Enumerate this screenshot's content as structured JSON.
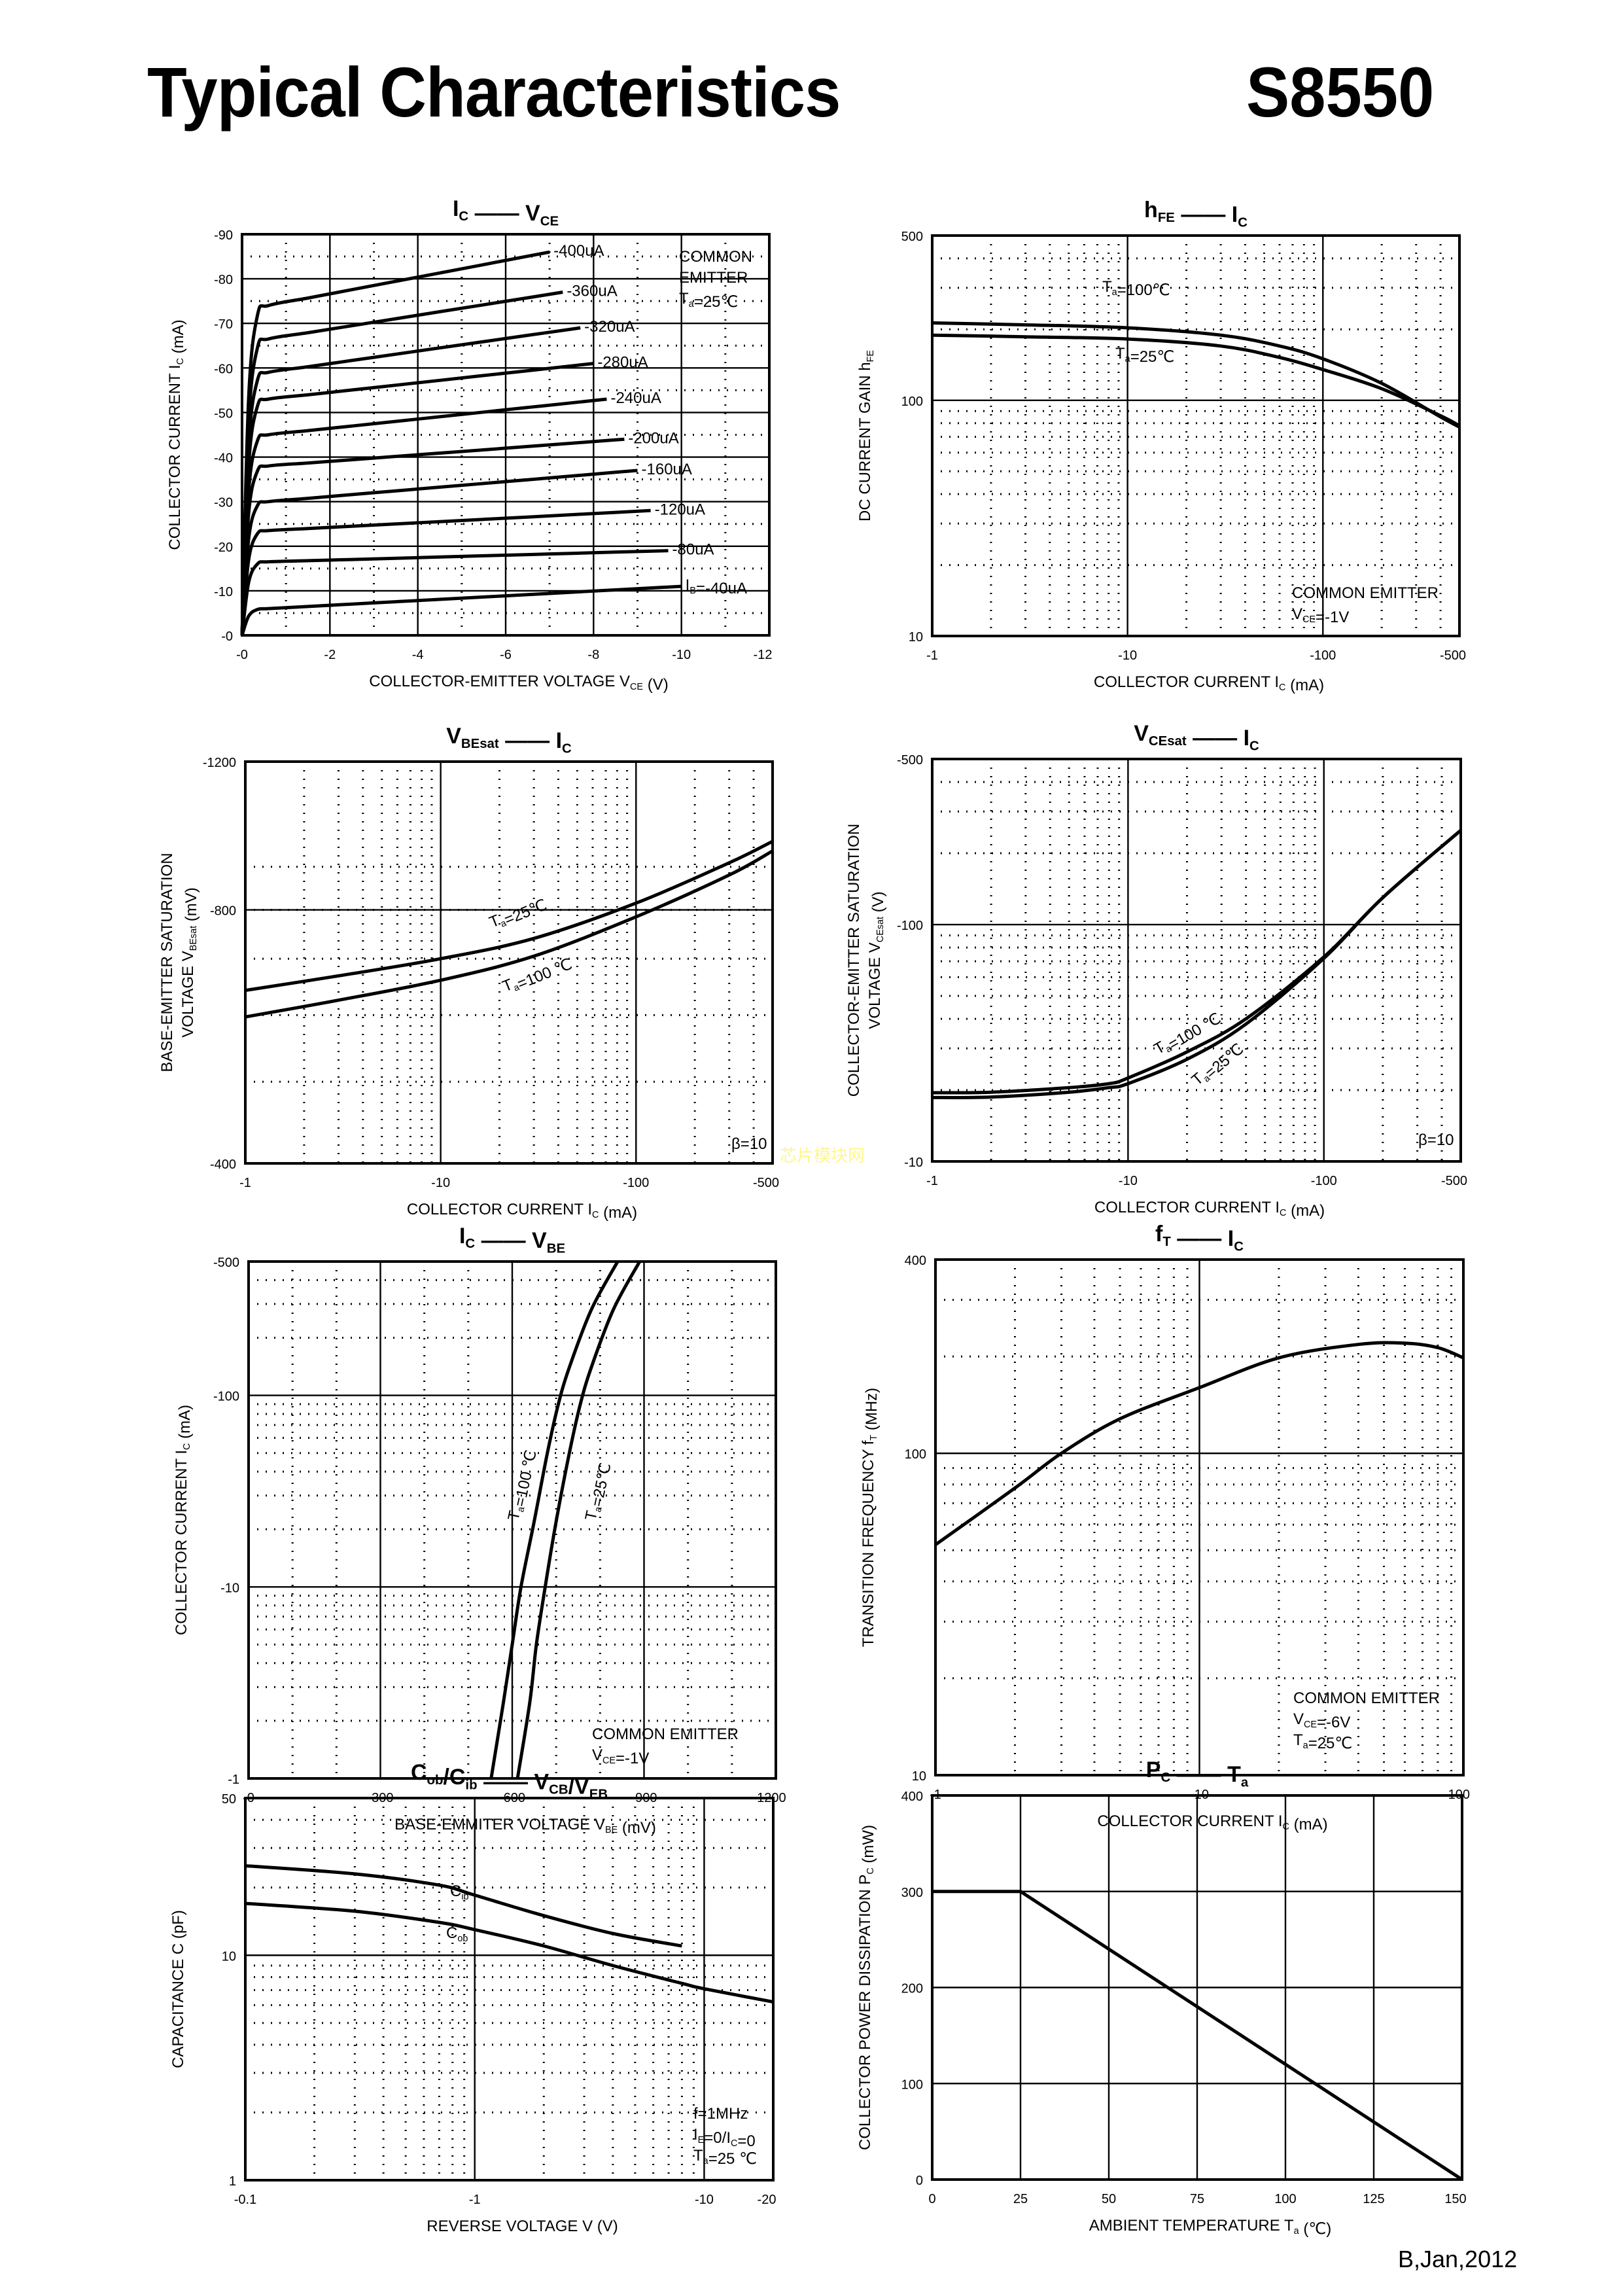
{
  "page": {
    "title": "Typical Characteristics",
    "part_number": "S8550",
    "footer": "B,Jan,2012",
    "watermark": "芯片模块网",
    "watermark_color": "#fff68f"
  },
  "chart_data": [
    {
      "id": "ic_vce",
      "type": "line",
      "title_main": "I",
      "title_main_sub": "C",
      "title_dash": "——",
      "title_vs": "V",
      "title_vs_sub": "CE",
      "xlabel": "COLLECTOR-EMITTER VOLTAGE",
      "xlabel_sym": "V",
      "xlabel_sub": "CE",
      "xlabel_unit": "(V)",
      "ylabel": "COLLECTOR CURRENT",
      "ylabel_sym": "I",
      "ylabel_sub": "C",
      "ylabel_unit": "(mA)",
      "xscale": "linear",
      "yscale": "linear",
      "xlim": [
        0,
        -12
      ],
      "ylim": [
        0,
        -90
      ],
      "xticks": [
        0,
        -2,
        -4,
        -6,
        -8,
        -10,
        -12
      ],
      "xtick_labels": [
        "-0",
        "-2",
        "-4",
        "-6",
        "-8",
        "-10",
        "-12"
      ],
      "yticks": [
        0,
        -10,
        -20,
        -30,
        -40,
        -50,
        -60,
        -70,
        -80,
        -90
      ],
      "ytick_labels": [
        "-0",
        "-10",
        "-20",
        "-30",
        "-40",
        "-50",
        "-60",
        "-70",
        "-80",
        "-90"
      ],
      "minor_x": [
        -1,
        -3,
        -5,
        -7,
        -9,
        -11
      ],
      "minor_y": [
        -5,
        -15,
        -25,
        -35,
        -45,
        -55,
        -65,
        -75,
        -85
      ],
      "annotations": [
        "COMMON",
        "EMITTER",
        "T",
        "a",
        "=25℃"
      ],
      "series": [
        {
          "name": "-400uA",
          "knee": -74,
          "end_x": -7.0,
          "end_y": -86
        },
        {
          "name": "-360uA",
          "knee": -66.5,
          "end_x": -7.3,
          "end_y": -77
        },
        {
          "name": "-320uA",
          "knee": -59,
          "end_x": -7.7,
          "end_y": -69
        },
        {
          "name": "-280uA",
          "knee": -53,
          "end_x": -8.0,
          "end_y": -61
        },
        {
          "name": "-240uA",
          "knee": -45,
          "end_x": -8.3,
          "end_y": -53
        },
        {
          "name": "-200uA",
          "knee": -38,
          "end_x": -8.7,
          "end_y": -44
        },
        {
          "name": "-160uA",
          "knee": -30,
          "end_x": -9.0,
          "end_y": -37
        },
        {
          "name": "-120uA",
          "knee": -23.5,
          "end_x": -9.3,
          "end_y": -28
        },
        {
          "name": "-80uA",
          "knee": -16.5,
          "end_x": -9.7,
          "end_y": -19
        },
        {
          "name": "=-40uA",
          "prefix": "I",
          "prefix_sub": "B",
          "knee": -6,
          "end_x": -10.0,
          "end_y": -11
        }
      ]
    },
    {
      "id": "hfe_ic",
      "type": "line",
      "title_main": "h",
      "title_main_sub": "FE",
      "title_dash": "——",
      "title_vs": "I",
      "title_vs_sub": "C",
      "xlabel": "COLLECTOR CURRENT",
      "xlabel_sym": "I",
      "xlabel_sub": "C",
      "xlabel_unit": "(mA)",
      "ylabel": "DC CURRENT GAIN",
      "ylabel_sym": "h",
      "ylabel_sub": "FE",
      "ylabel_unit": "",
      "xscale": "log",
      "yscale": "log",
      "xlim": [
        1,
        500
      ],
      "ylim": [
        10,
        500
      ],
      "xticks": [
        1,
        10,
        100,
        500
      ],
      "xtick_labels": [
        "-1",
        "-10",
        "-100",
        "-500"
      ],
      "yticks": [
        10,
        100,
        500
      ],
      "ytick_labels": [
        "10",
        "100",
        "500"
      ],
      "annotations": [
        "COMMON EMITTER",
        "V",
        "CE",
        "=-1V"
      ],
      "series": [
        {
          "name": "T",
          "sub": "a",
          "label": "=100℃",
          "x": [
            1,
            3,
            10,
            30,
            60,
            100,
            200,
            400,
            500
          ],
          "y": [
            213,
            209,
            203,
            189,
            170,
            150,
            118,
            85,
            77
          ]
        },
        {
          "name": "T",
          "sub": "a",
          "label": "=25℃",
          "x": [
            1,
            3,
            10,
            30,
            60,
            100,
            200,
            400,
            500
          ],
          "y": [
            189,
            186,
            182,
            170,
            152,
            135,
            112,
            86,
            78
          ]
        }
      ]
    },
    {
      "id": "vbesat_ic",
      "type": "line",
      "title_main": "V",
      "title_main_sub": "BEsat",
      "title_dash": "——",
      "title_vs": "I",
      "title_vs_sub": "C",
      "xlabel": "COLLECTOR CURRENT",
      "xlabel_sym": "I",
      "xlabel_sub": "C",
      "xlabel_unit": "(mA)",
      "ylabel": "BASE-EMITTER SATURATION",
      "ylabel2": "VOLTAGE",
      "ylabel_sym": "V",
      "ylabel_sub": "BEsat",
      "ylabel_unit": "(mV)",
      "xscale": "log",
      "yscale": "log",
      "xlim": [
        1,
        500
      ],
      "ylim": [
        400,
        1200
      ],
      "xticks": [
        1,
        10,
        100,
        500
      ],
      "xtick_labels": [
        "-1",
        "-10",
        "-100",
        "-500"
      ],
      "yticks": [
        400,
        800,
        1200
      ],
      "ytick_labels": [
        "-400",
        "-800",
        "-1200"
      ],
      "annotations": [
        "β=10"
      ],
      "series": [
        {
          "name": "T",
          "sub": "a",
          "label": "=25℃",
          "x": [
            1,
            3,
            10,
            30,
            100,
            300,
            500
          ],
          "y": [
            642,
            668,
            700,
            740,
            815,
            910,
            965
          ]
        },
        {
          "name": "T",
          "sub": "a",
          "label": "=100 ℃",
          "x": [
            1,
            3,
            10,
            30,
            100,
            300,
            500
          ],
          "y": [
            597,
            625,
            660,
            705,
            785,
            880,
            940
          ]
        }
      ]
    },
    {
      "id": "vcesat_ic",
      "type": "line",
      "title_main": "V",
      "title_main_sub": "CEsat",
      "title_dash": "——",
      "title_vs": "I",
      "title_vs_sub": "C",
      "xlabel": "COLLECTOR CURRENT",
      "xlabel_sym": "I",
      "xlabel_sub": "C",
      "xlabel_unit": "(mA)",
      "ylabel": "COLLECTOR-EMITTER SATURATION",
      "ylabel2": "VOLTAGE",
      "ylabel_sym": "V",
      "ylabel_sub": "CEsat",
      "ylabel_unit": "(V)",
      "xscale": "log",
      "yscale": "log",
      "xlim": [
        1,
        500
      ],
      "ylim": [
        10,
        500
      ],
      "xticks": [
        1,
        10,
        100,
        500
      ],
      "xtick_labels": [
        "-1",
        "-10",
        "-100",
        "-500"
      ],
      "yticks": [
        10,
        100,
        500
      ],
      "ytick_labels": [
        "-10",
        "-100",
        "-500"
      ],
      "annotations": [
        "β=10"
      ],
      "series": [
        {
          "name": "T",
          "sub": "a",
          "label": "=100 ℃",
          "x": [
            1,
            2,
            5,
            8,
            10,
            20,
            40,
            100,
            200,
            500
          ],
          "y": [
            19.5,
            19.6,
            20.5,
            21.3,
            22.5,
            29,
            40,
            73,
            130,
            250
          ]
        },
        {
          "name": "T",
          "sub": "a",
          "label": "=25℃",
          "x": [
            1,
            2,
            5,
            8,
            10,
            20,
            40,
            100,
            200,
            500
          ],
          "y": [
            18.6,
            18.7,
            19.6,
            20.5,
            21.3,
            27,
            38,
            72,
            130,
            250
          ]
        }
      ]
    },
    {
      "id": "ic_vbe",
      "type": "line",
      "title_main": "I",
      "title_main_sub": "C",
      "title_dash": "——",
      "title_vs": "V",
      "title_vs_sub": "BE",
      "xlabel": "BASE-EMMITER VOLTAGE",
      "xlabel_sym": "V",
      "xlabel_sub": "BE",
      "xlabel_unit": "(mV)",
      "ylabel": "COLLECTOR CURRENT",
      "ylabel_sym": "I",
      "ylabel_sub": "C",
      "ylabel_unit": "(mA)",
      "xscale": "linear",
      "yscale": "log",
      "xlim": [
        0,
        -1200
      ],
      "ylim": [
        1,
        500
      ],
      "xticks": [
        0,
        -300,
        -600,
        -900,
        -1200
      ],
      "xtick_labels": [
        "-0",
        "-300",
        "-600",
        "-900",
        "-1200"
      ],
      "minor_x": [
        -100,
        -200,
        -400,
        -500,
        -700,
        -800,
        -1000,
        -1100
      ],
      "yticks": [
        1,
        10,
        100,
        500
      ],
      "ytick_labels": [
        "-1",
        "-10",
        "-100",
        "-500"
      ],
      "annotations": [
        "COMMON EMITTER",
        "V",
        "CE",
        "=-1V"
      ],
      "series": [
        {
          "name": "T",
          "sub": "a",
          "label": "=100 ℃",
          "x": [
            -552,
            -580,
            -600,
            -620,
            -650,
            -680,
            -705,
            -730,
            -780,
            -840
          ],
          "y": [
            1,
            2.5,
            5,
            10,
            22,
            50,
            90,
            140,
            280,
            500
          ]
        },
        {
          "name": "T",
          "sub": "a",
          "label": "=25℃",
          "x": [
            -612,
            -640,
            -655,
            -675,
            -700,
            -730,
            -755,
            -780,
            -830,
            -890
          ],
          "y": [
            1,
            2.5,
            5,
            10,
            22,
            50,
            90,
            140,
            280,
            500
          ]
        }
      ]
    },
    {
      "id": "ft_ic",
      "type": "line",
      "title_main": "f",
      "title_main_sub": "T",
      "title_dash": "——",
      "title_vs": "I",
      "title_vs_sub": "C",
      "xlabel": "COLLECTOR CURRENT",
      "xlabel_sym": "I",
      "xlabel_sub": "C",
      "xlabel_unit": "(mA)",
      "ylabel": "TRANSITION FREQUENCY",
      "ylabel_sym": "f",
      "ylabel_sub": "T",
      "ylabel_unit": "(MHz)",
      "xscale": "log",
      "yscale": "log",
      "xlim": [
        1,
        100
      ],
      "ylim": [
        10,
        400
      ],
      "xticks": [
        1,
        10,
        100
      ],
      "xtick_labels": [
        "-1",
        "-10",
        "-100"
      ],
      "yticks": [
        10,
        100,
        400
      ],
      "ytick_labels": [
        "10",
        "100",
        "400"
      ],
      "annotations": [
        "COMMON EMITTER",
        "V",
        "CE",
        "=-6V",
        "T",
        "a",
        "=25℃"
      ],
      "series": [
        {
          "name": "f_T",
          "x": [
            1,
            2,
            3,
            5,
            10,
            20,
            40,
            60,
            80,
            100
          ],
          "y": [
            52,
            78,
            100,
            128,
            160,
            198,
            218,
            220,
            213,
            198
          ]
        }
      ]
    },
    {
      "id": "cap_v",
      "type": "line",
      "title_main": "C",
      "title_main_sub": "ob",
      "title_main2": "/C",
      "title_main2_sub": "ib",
      "title_dash": "——",
      "title_vs": "V",
      "title_vs_sub": "CB",
      "title_vs2": "/V",
      "title_vs2_sub": "EB",
      "xlabel": "REVERSE  VOLTAGE",
      "xlabel_sym": "V",
      "xlabel_unit": "(V)",
      "ylabel": "CAPACITANCE",
      "ylabel_sym": "C",
      "ylabel_unit": "(pF)",
      "xscale": "log",
      "yscale": "log",
      "xlim": [
        0.1,
        20
      ],
      "ylim": [
        1,
        50
      ],
      "xticks": [
        0.1,
        1,
        10,
        20
      ],
      "xtick_labels": [
        "-0.1",
        "-1",
        "-10",
        "-20"
      ],
      "yticks": [
        1,
        10,
        50
      ],
      "ytick_labels": [
        "1",
        "10",
        "50"
      ],
      "annotations": [
        "f=1MHz",
        "I",
        "E",
        "=0/I",
        "C",
        "=0",
        "T",
        "a",
        "=25 ℃"
      ],
      "series": [
        {
          "name": "C",
          "sub": "ib",
          "x": [
            0.1,
            0.3,
            0.7,
            1,
            2,
            4,
            8
          ],
          "y": [
            25,
            23,
            20.5,
            18.5,
            15,
            12.5,
            11
          ]
        },
        {
          "name": "C",
          "sub": "ob",
          "x": [
            0.1,
            0.3,
            0.7,
            1,
            2,
            4,
            8,
            10,
            20
          ],
          "y": [
            17,
            15.7,
            14,
            13,
            11,
            9,
            7.5,
            7.1,
            6.2
          ]
        }
      ]
    },
    {
      "id": "pc_ta",
      "type": "line",
      "title_main": "P",
      "title_main_sub": "C",
      "title_dash": "——",
      "title_vs": "T",
      "title_vs_sub": "a",
      "xlabel": "AMBIENT TEMPERATURE",
      "xlabel_sym": "T",
      "xlabel_sub": "a",
      "xlabel_unit": "(℃)",
      "ylabel": "COLLECTOR POWER DISSIPATION",
      "ylabel_sym": "P",
      "ylabel_sub": "C",
      "ylabel_unit": "(mW)",
      "xscale": "linear",
      "yscale": "linear",
      "xlim": [
        0,
        150
      ],
      "ylim": [
        0,
        400
      ],
      "xticks": [
        0,
        25,
        50,
        75,
        100,
        125,
        150
      ],
      "xtick_labels": [
        "0",
        "25",
        "50",
        "75",
        "100",
        "125",
        "150"
      ],
      "yticks": [
        0,
        100,
        200,
        300,
        400
      ],
      "ytick_labels": [
        "0",
        "100",
        "200",
        "300",
        "400"
      ],
      "series": [
        {
          "name": "P_C",
          "x": [
            0,
            25,
            150
          ],
          "y": [
            300,
            300,
            0
          ]
        }
      ]
    }
  ]
}
